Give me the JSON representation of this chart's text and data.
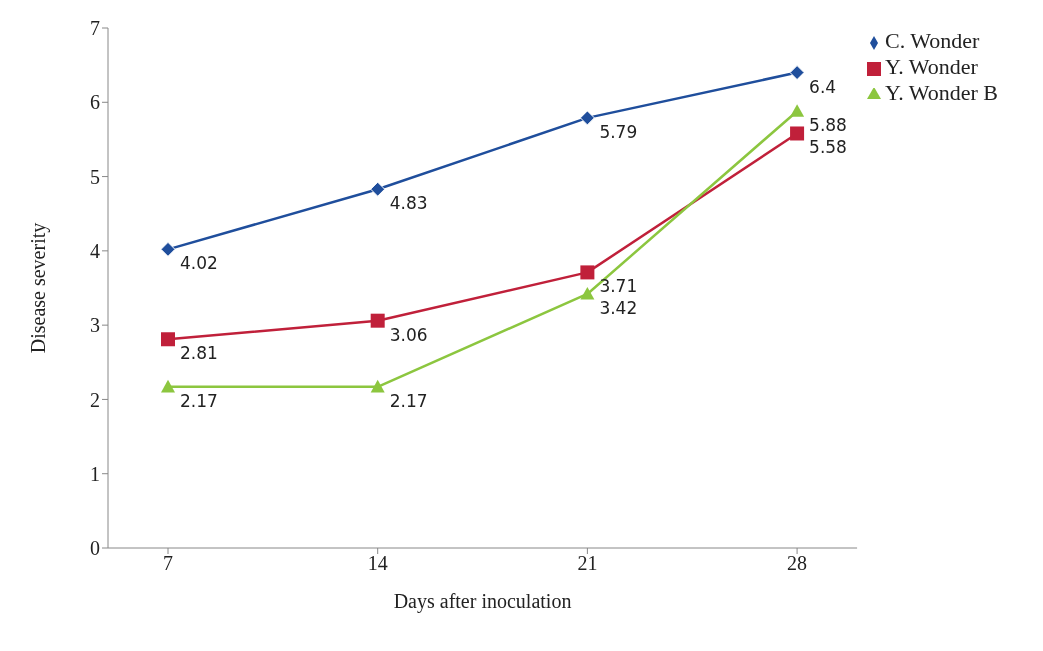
{
  "chart_data": {
    "type": "line",
    "xlabel": "Days after inoculation",
    "ylabel": "Disease severity",
    "categories": [
      "7",
      "14",
      "21",
      "28"
    ],
    "series": [
      {
        "name": "C. Wonder",
        "color": "#1f4e9c",
        "marker": "diamond",
        "values": [
          4.02,
          4.83,
          5.79,
          6.4
        ]
      },
      {
        "name": "Y. Wonder",
        "color": "#c0203a",
        "marker": "square",
        "values": [
          2.81,
          3.06,
          3.71,
          5.58
        ]
      },
      {
        "name": "Y. Wonder B",
        "color": "#8cc63f",
        "marker": "triangle",
        "values": [
          2.17,
          2.17,
          3.42,
          5.88
        ]
      }
    ],
    "ylim": [
      0,
      7
    ],
    "yticks": [
      0,
      1,
      2,
      3,
      4,
      5,
      6,
      7
    ],
    "grid": false,
    "legend": "top right",
    "data_labels": true
  }
}
